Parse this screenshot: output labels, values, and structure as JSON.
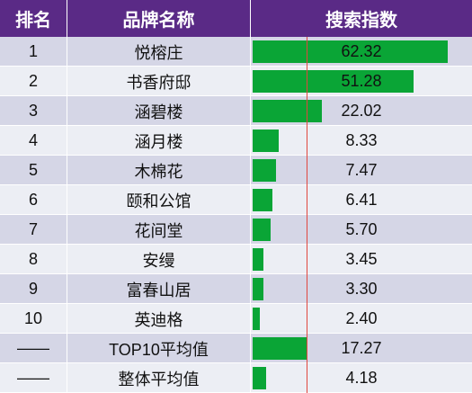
{
  "headers": {
    "rank": "排名",
    "brand": "品牌名称",
    "index": "搜索指数"
  },
  "colors": {
    "header_bg": "#5a2a86",
    "bar": "#0aa536",
    "ref_line": "#e0473f",
    "row_odd": "#d5d6e6",
    "row_even": "#eceef4"
  },
  "chart_data": {
    "type": "table",
    "reference_line": 17.27,
    "xlim": [
      0,
      70
    ],
    "rows": [
      {
        "rank": "1",
        "brand": "悦榕庄",
        "value": 62.32,
        "label": "62.32"
      },
      {
        "rank": "2",
        "brand": "书香府邸",
        "value": 51.28,
        "label": "51.28"
      },
      {
        "rank": "3",
        "brand": "涵碧楼",
        "value": 22.02,
        "label": "22.02"
      },
      {
        "rank": "4",
        "brand": "涵月楼",
        "value": 8.33,
        "label": "8.33"
      },
      {
        "rank": "5",
        "brand": "木棉花",
        "value": 7.47,
        "label": "7.47"
      },
      {
        "rank": "6",
        "brand": "颐和公馆",
        "value": 6.41,
        "label": "6.41"
      },
      {
        "rank": "7",
        "brand": "花间堂",
        "value": 5.7,
        "label": "5.70"
      },
      {
        "rank": "8",
        "brand": "安缦",
        "value": 3.45,
        "label": "3.45"
      },
      {
        "rank": "9",
        "brand": "富春山居",
        "value": 3.3,
        "label": "3.30"
      },
      {
        "rank": "10",
        "brand": "英迪格",
        "value": 2.4,
        "label": "2.40"
      },
      {
        "rank": "——",
        "brand": "TOP10平均值",
        "value": 17.27,
        "label": "17.27"
      },
      {
        "rank": "——",
        "brand": "整体平均值",
        "value": 4.18,
        "label": "4.18"
      }
    ]
  }
}
